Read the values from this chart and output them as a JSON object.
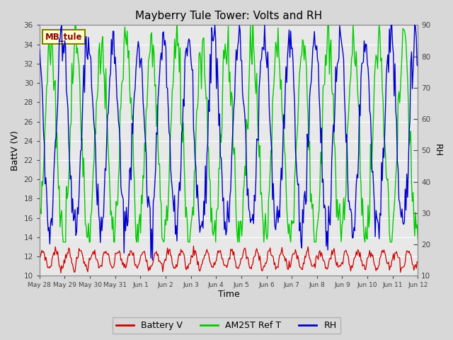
{
  "title": "Mayberry Tule Tower: Volts and RH",
  "xlabel": "Time",
  "ylabel_left": "BattV (V)",
  "ylabel_right": "RH",
  "station_label": "MB_tule",
  "ylim_left": [
    10,
    36
  ],
  "ylim_right": [
    10,
    90
  ],
  "yticks_left": [
    10,
    12,
    14,
    16,
    18,
    20,
    22,
    24,
    26,
    28,
    30,
    32,
    34,
    36
  ],
  "yticks_right": [
    10,
    20,
    30,
    40,
    50,
    60,
    70,
    80,
    90
  ],
  "bg_color": "#d8d8d8",
  "plot_bg_color": "#e8e8e8",
  "grid_color": "#ffffff",
  "battery_color": "#cc0000",
  "am25t_color": "#00cc00",
  "rh_color": "#0000cc",
  "legend_labels": [
    "Battery V",
    "AM25T Ref T",
    "RH"
  ],
  "x_tick_labels": [
    "May 28",
    "May 29",
    "May 30",
    "May 31",
    "Jun 1",
    "Jun 2",
    "Jun 3",
    "Jun 4",
    "Jun 5",
    "Jun 6",
    "Jun 7",
    "Jun 8",
    "Jun 9",
    "Jun 10",
    "Jun 11",
    "Jun 12"
  ],
  "n_points": 480
}
